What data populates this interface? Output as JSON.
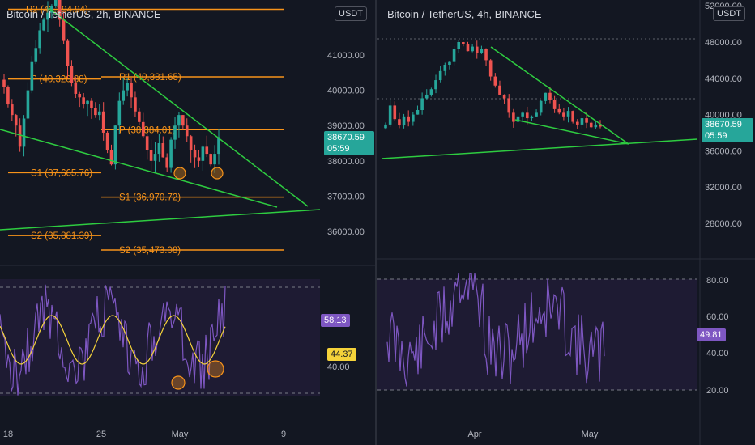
{
  "left": {
    "title": "Bitcoin / TetherUS, 2h, BINANCE",
    "unit": "USDT",
    "price_badge": "38670.59",
    "countdown": "05:59",
    "rsi_badge": "58.13",
    "rsi_ma_badge": "44.37",
    "y_ticks": [
      "41000.00",
      "40000.00",
      "39000.00",
      "38000.00",
      "37000.00",
      "36000.00"
    ],
    "rsi_ticks": [
      "40.00"
    ],
    "x_ticks": [
      "18",
      "25",
      "May",
      "9"
    ],
    "pivots": [
      {
        "label": "R2 (42,294.94)"
      },
      {
        "label": "P (40,320.88)"
      },
      {
        "label": "R1 (40,381.65)"
      },
      {
        "label": "P (38,884.01)"
      },
      {
        "label": "S1 (37,665.76)"
      },
      {
        "label": "S1 (36,970.72)"
      },
      {
        "label": "S2 (35,881.39)"
      },
      {
        "label": "S2 (35,473.08)"
      }
    ]
  },
  "right": {
    "title": "Bitcoin / TetherUS, 4h, BINANCE",
    "unit": "USDT",
    "price_badge": "38670.59",
    "countdown": "05:59",
    "rsi_badge": "49.81",
    "y_ticks": [
      "52000.00",
      "48000.00",
      "44000.00",
      "40000.00",
      "36000.00",
      "32000.00",
      "28000.00"
    ],
    "rsi_ticks": [
      "80.00",
      "60.00",
      "40.00",
      "20.00"
    ],
    "x_ticks": [
      "Apr",
      "May"
    ]
  },
  "colors": {
    "background": "#131722",
    "up": "#26a69a",
    "down": "#ef5350",
    "pivot": "#f7931a",
    "trendline": "#2ecc40",
    "rsi": "#7e57c2",
    "rsi_ma": "#f5d33a"
  },
  "chart_data": [
    {
      "type": "candlestick",
      "symbol": "Bitcoin / TetherUS",
      "interval": "2h",
      "exchange": "BINANCE",
      "last_price": 38670.59,
      "y_range": [
        35000,
        42500
      ],
      "x_ticks": [
        "18",
        "25",
        "May",
        "9"
      ],
      "pivot_levels": [
        {
          "name": "R2",
          "value": 42294.94
        },
        {
          "name": "P",
          "value": 40320.88
        },
        {
          "name": "R1",
          "value": 40381.65
        },
        {
          "name": "P",
          "value": 38884.01
        },
        {
          "name": "S1",
          "value": 37665.76
        },
        {
          "name": "S1",
          "value": 36970.72
        },
        {
          "name": "S2",
          "value": 35881.39
        },
        {
          "name": "S2",
          "value": 35473.08
        }
      ],
      "closes": [
        40100,
        39600,
        39300,
        39000,
        38400,
        39200,
        40000,
        40800,
        41200,
        41700,
        42000,
        42200,
        42400,
        42600,
        42000,
        41400,
        40700,
        40200,
        39900,
        39800,
        39600,
        39700,
        39500,
        39300,
        39400,
        38800,
        38300,
        37900,
        39000,
        39700,
        40000,
        40200,
        39800,
        39400,
        39100,
        38700,
        38300,
        38000,
        38200,
        38500,
        38100,
        37800,
        38600,
        39000,
        39300,
        39000,
        38700,
        38300,
        38100,
        38000,
        38400,
        38200,
        37900,
        38200,
        38670.59
      ],
      "rsi": {
        "last": 58.13,
        "ma_last": 44.37,
        "bands": [
          30,
          70
        ]
      }
    },
    {
      "type": "candlestick",
      "symbol": "Bitcoin / TetherUS",
      "interval": "4h",
      "exchange": "BINANCE",
      "last_price": 38670.59,
      "y_range": [
        25000,
        52500
      ],
      "x_ticks": [
        "Apr",
        "May"
      ],
      "closes": [
        38900,
        41000,
        39500,
        38800,
        39800,
        39200,
        40000,
        40500,
        41800,
        42200,
        42800,
        43800,
        44800,
        45500,
        45800,
        47200,
        48000,
        47800,
        47000,
        47500,
        46800,
        47200,
        46000,
        44200,
        43200,
        42200,
        41800,
        40200,
        39200,
        39800,
        40200,
        39600,
        39800,
        40200,
        41500,
        42400,
        41600,
        40600,
        40200,
        39800,
        40400,
        39200,
        38900,
        39600,
        39100,
        38600,
        38900,
        38670.59
      ],
      "rsi": {
        "last": 49.81,
        "bands": [
          20,
          80
        ]
      }
    }
  ]
}
